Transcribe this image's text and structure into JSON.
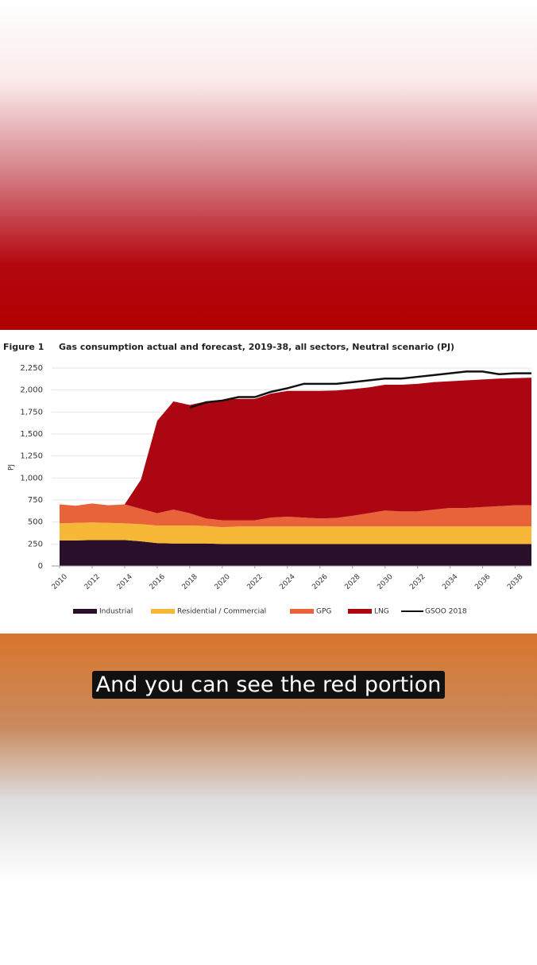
{
  "caption": "And you can see the red portion",
  "chart_data": {
    "type": "stacked_area",
    "figure_label": "Figure 1",
    "title": "Gas consumption actual and forecast, 2019-38, all sectors, Neutral scenario (PJ)",
    "y_label": "PJ",
    "x": [
      2010,
      2011,
      2012,
      2013,
      2014,
      2015,
      2016,
      2017,
      2018,
      2019,
      2020,
      2021,
      2022,
      2023,
      2024,
      2025,
      2026,
      2027,
      2028,
      2029,
      2030,
      2031,
      2032,
      2033,
      2034,
      2035,
      2036,
      2037,
      2038,
      2039
    ],
    "xlim": [
      2010,
      2039
    ],
    "xticks": [
      2010,
      2012,
      2014,
      2016,
      2018,
      2020,
      2022,
      2024,
      2026,
      2028,
      2030,
      2032,
      2034,
      2036,
      2038
    ],
    "ylim": [
      0,
      2250
    ],
    "yticks": [
      0,
      250,
      500,
      750,
      {
        "value": 1000,
        "label": "1,000"
      },
      {
        "value": 1250,
        "label": "1,250"
      },
      {
        "value": 1500,
        "label": "1,500"
      },
      {
        "value": 1750,
        "label": "1,750"
      },
      {
        "value": 2000,
        "label": "2,000"
      },
      {
        "value": 2250,
        "label": "2,250"
      }
    ],
    "grid": true,
    "series": [
      {
        "name": "Industrial",
        "color": "#2a0f2a",
        "values": [
          290,
          290,
          295,
          295,
          295,
          280,
          260,
          255,
          255,
          255,
          250,
          250,
          250,
          250,
          250,
          250,
          250,
          250,
          250,
          250,
          250,
          250,
          250,
          250,
          250,
          250,
          250,
          250,
          250,
          250
        ]
      },
      {
        "name": "Residential / Commercial",
        "color": "#f5b735",
        "values": [
          195,
          200,
          200,
          195,
          190,
          195,
          200,
          205,
          205,
          200,
          190,
          200,
          200,
          200,
          200,
          200,
          200,
          200,
          200,
          200,
          200,
          200,
          200,
          200,
          200,
          200,
          200,
          200,
          200,
          200
        ]
      },
      {
        "name": "GPG",
        "color": "#e8633a",
        "values": [
          215,
          195,
          215,
          200,
          215,
          175,
          140,
          180,
          140,
          85,
          80,
          70,
          70,
          100,
          110,
          100,
          90,
          95,
          120,
          150,
          180,
          170,
          170,
          190,
          210,
          210,
          220,
          230,
          240,
          240
        ]
      },
      {
        "name": "LNG",
        "color": "#ab0612",
        "values": [
          0,
          0,
          0,
          0,
          0,
          330,
          1050,
          1230,
          1230,
          1330,
          1370,
          1380,
          1380,
          1410,
          1430,
          1440,
          1450,
          1450,
          1440,
          1430,
          1430,
          1440,
          1450,
          1450,
          1440,
          1450,
          1450,
          1450,
          1445,
          1450
        ]
      },
      {
        "name": "GSOO 2018",
        "color": "#111111",
        "kind": "line",
        "values": [
          null,
          null,
          null,
          null,
          null,
          null,
          null,
          null,
          1800,
          1860,
          1880,
          1920,
          1920,
          1980,
          2020,
          2070,
          2070,
          2070,
          2090,
          2110,
          2130,
          2130,
          2150,
          2170,
          2190,
          2210,
          2210,
          2180,
          2190,
          2190
        ]
      }
    ]
  }
}
